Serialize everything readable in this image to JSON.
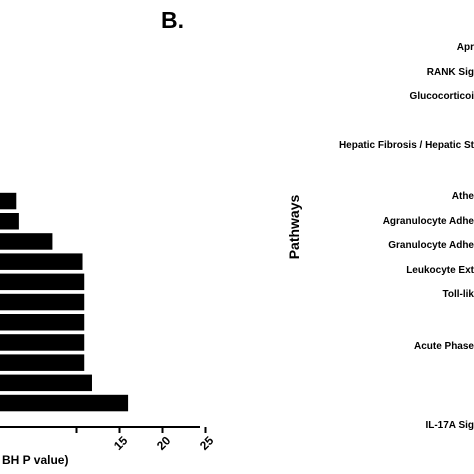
{
  "panel_b": {
    "label": "B."
  },
  "chart_data": [
    {
      "type": "bar",
      "orientation": "horizontal",
      "values": [
        0.2,
        0.4,
        0.4,
        0.5,
        3.0,
        3.3,
        7.2,
        10.7,
        10.9,
        10.9,
        10.9,
        10.9,
        10.9,
        11.8,
        16.0
      ],
      "xlabel": "BH P value)",
      "xticks": [
        "15",
        "20",
        "25"
      ],
      "xlim": [
        0,
        25
      ],
      "bar_color": "#000000",
      "grid": false
    },
    {
      "type": "bar",
      "orientation": "horizontal",
      "ylabel": "Pathways",
      "categories": [
        "Apr",
        "RANK Sig",
        "Glucocorticoi",
        "Hepatic Fibrosis / Hepatic St",
        "Athe",
        "Agranulocyte Adhe",
        "Granulocyte Adhe",
        "Leukocyte Ext",
        "Toll-lik",
        "Acute Phase",
        "IL-17A Sig"
      ]
    }
  ]
}
